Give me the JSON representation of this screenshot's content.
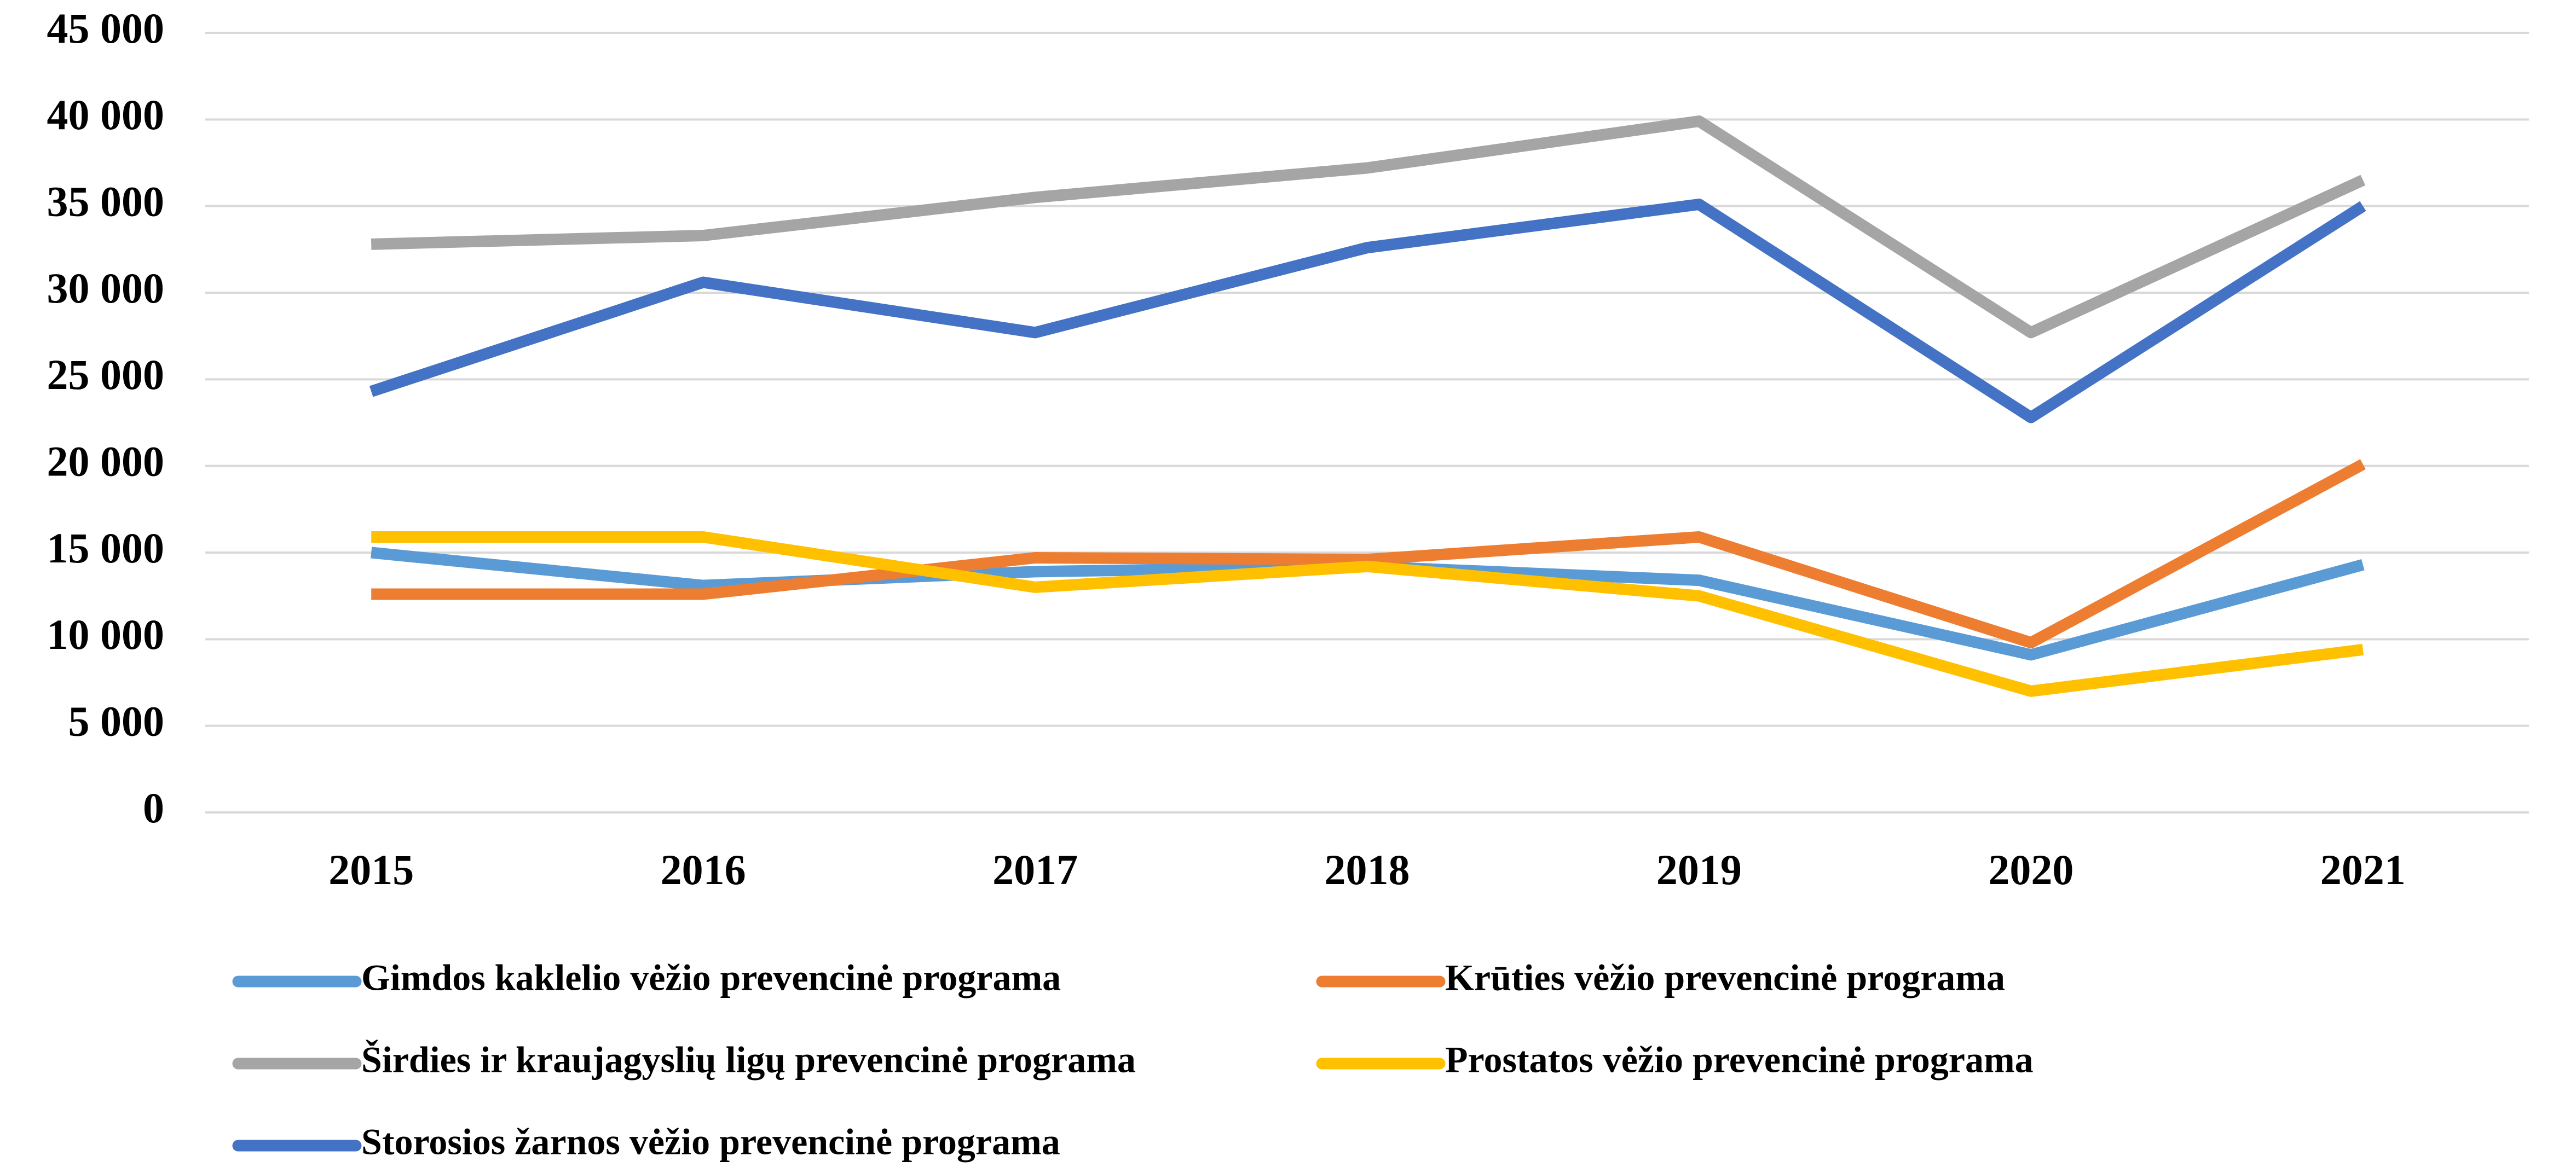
{
  "chart_data": {
    "type": "line",
    "categories": [
      "2015",
      "2016",
      "2017",
      "2018",
      "2019",
      "2020",
      "2021"
    ],
    "series": [
      {
        "name": "Gimdos kaklelio vėžio prevencinė programa",
        "color": "#5b9bd5",
        "values": [
          15000,
          13100,
          13900,
          14200,
          13400,
          9100,
          14300
        ]
      },
      {
        "name": "Krūties vėžio prevencinė programa",
        "color": "#ed7d31",
        "values": [
          12600,
          12600,
          14700,
          14600,
          15900,
          9800,
          20100
        ]
      },
      {
        "name": "Širdies ir kraujagyslių ligų prevencinė programa",
        "color": "#a5a5a5",
        "values": [
          32800,
          33300,
          35500,
          37200,
          39900,
          27700,
          36500
        ]
      },
      {
        "name": "Prostatos vėžio prevencinė programa",
        "color": "#ffc000",
        "values": [
          15900,
          15900,
          13000,
          14200,
          12500,
          7000,
          9400
        ]
      },
      {
        "name": "Storosios žarnos vėžio prevencinė programa",
        "color": "#4472c4",
        "values": [
          24300,
          30600,
          27700,
          32600,
          35100,
          22800,
          35000
        ]
      }
    ],
    "ylim": [
      0,
      45000
    ],
    "yticks": [
      0,
      {
        "value": 5000,
        "label": "5 000"
      },
      {
        "value": 10000,
        "label": "10 000"
      },
      {
        "value": 15000,
        "label": "15 000"
      },
      {
        "value": 20000,
        "label": "20 000"
      },
      {
        "value": 25000,
        "label": "25 000"
      },
      {
        "value": 30000,
        "label": "30 000"
      },
      {
        "value": 35000,
        "label": "35 000"
      },
      {
        "value": 40000,
        "label": "40 000"
      },
      {
        "value": 45000,
        "label": "45 000"
      }
    ],
    "grid": true,
    "legend": "bottom"
  }
}
